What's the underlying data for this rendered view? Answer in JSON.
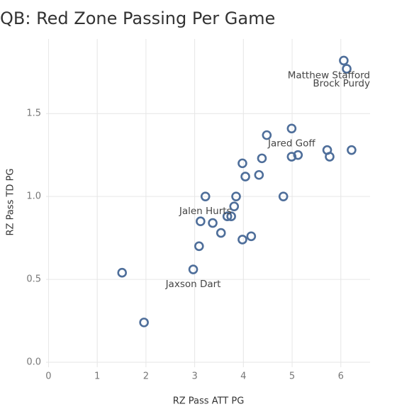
{
  "chart_data": {
    "type": "scatter",
    "title": "QB: Red Zone Passing Per Game",
    "x_label": "RZ Pass ATT PG",
    "y_label": "RZ Pass TD PG",
    "color": "#4e6e9a",
    "grid": true,
    "xlim": [
      -0.05,
      6.6
    ],
    "ylim": [
      -0.03,
      1.95
    ],
    "xticks": [
      0,
      1,
      2,
      3,
      4,
      5,
      6
    ],
    "yticks": [
      {
        "value": 0,
        "label": "0.0"
      },
      0.5,
      {
        "value": 1,
        "label": "1.0"
      },
      1.5
    ],
    "x": [
      6.06,
      6.12,
      4.48,
      4.99,
      4.38,
      3.98,
      4.32,
      4.04,
      4.99,
      5.12,
      5.72,
      5.77,
      6.22,
      3.22,
      3.85,
      4.82,
      3.81,
      3.67,
      3.75,
      3.12,
      3.37,
      3.54,
      4.16,
      3.98,
      3.09,
      2.97,
      1.51,
      1.96
    ],
    "y": [
      1.82,
      1.77,
      1.37,
      1.41,
      1.23,
      1.2,
      1.13,
      1.12,
      1.24,
      1.25,
      1.28,
      1.24,
      1.28,
      1.0,
      1.0,
      1.0,
      0.94,
      0.88,
      0.88,
      0.85,
      0.84,
      0.78,
      0.76,
      0.74,
      0.7,
      0.56,
      0.54,
      0.24
    ],
    "point_labels": [
      "Matthew Stafford",
      "Brock Purdy",
      null,
      "Jared Goff",
      null,
      null,
      null,
      null,
      null,
      null,
      null,
      null,
      null,
      "Jalen Hurts",
      null,
      null,
      null,
      null,
      null,
      null,
      null,
      null,
      null,
      null,
      null,
      "Jaxson Dart",
      null,
      null
    ]
  }
}
